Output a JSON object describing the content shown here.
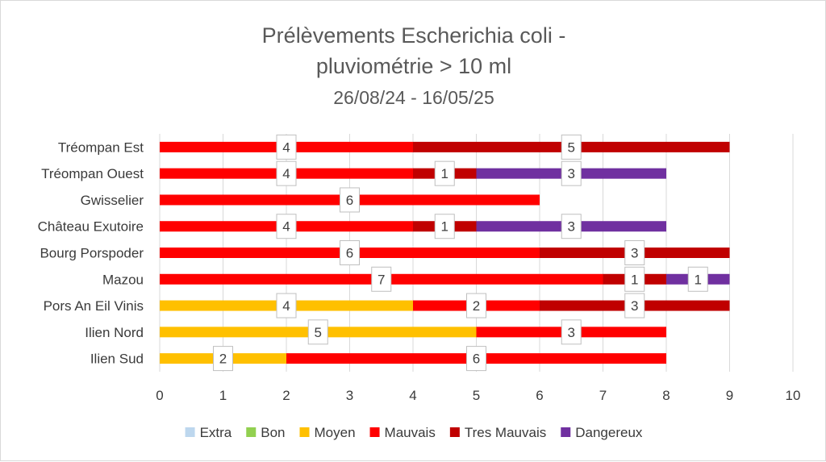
{
  "chart_data": {
    "type": "bar",
    "orientation": "horizontal",
    "stacked": true,
    "title_lines": [
      "Prélèvements Escherichia coli -",
      "pluviométrie > 10 ml",
      "26/08/24 - 16/05/25"
    ],
    "categories": [
      "Tréompan Est",
      "Tréompan Ouest",
      "Gwisselier",
      "Château Exutoire",
      "Bourg Porspoder",
      "Mazou",
      "Pors An Eil Vinis",
      "Ilien Nord",
      "Ilien Sud"
    ],
    "series": [
      {
        "name": "Extra",
        "color": "#bdd7ee",
        "values": [
          0,
          0,
          0,
          0,
          0,
          0,
          0,
          0,
          0
        ]
      },
      {
        "name": "Bon",
        "color": "#92d050",
        "values": [
          0,
          0,
          0,
          0,
          0,
          0,
          0,
          0,
          0
        ]
      },
      {
        "name": "Moyen",
        "color": "#ffc000",
        "values": [
          0,
          0,
          0,
          0,
          0,
          0,
          4,
          5,
          2
        ]
      },
      {
        "name": "Mauvais",
        "color": "#ff0000",
        "values": [
          4,
          4,
          6,
          4,
          6,
          7,
          2,
          3,
          6
        ]
      },
      {
        "name": "Tres Mauvais",
        "color": "#c00000",
        "values": [
          5,
          1,
          0,
          1,
          3,
          1,
          3,
          0,
          0
        ]
      },
      {
        "name": "Dangereux",
        "color": "#7030a0",
        "values": [
          0,
          3,
          0,
          3,
          0,
          1,
          0,
          0,
          0
        ]
      }
    ],
    "xlim": [
      0,
      10
    ],
    "xticks": [
      0,
      1,
      2,
      3,
      4,
      5,
      6,
      7,
      8,
      9,
      10
    ],
    "grid": "vertical",
    "legend_position": "bottom",
    "data_labels": true
  }
}
